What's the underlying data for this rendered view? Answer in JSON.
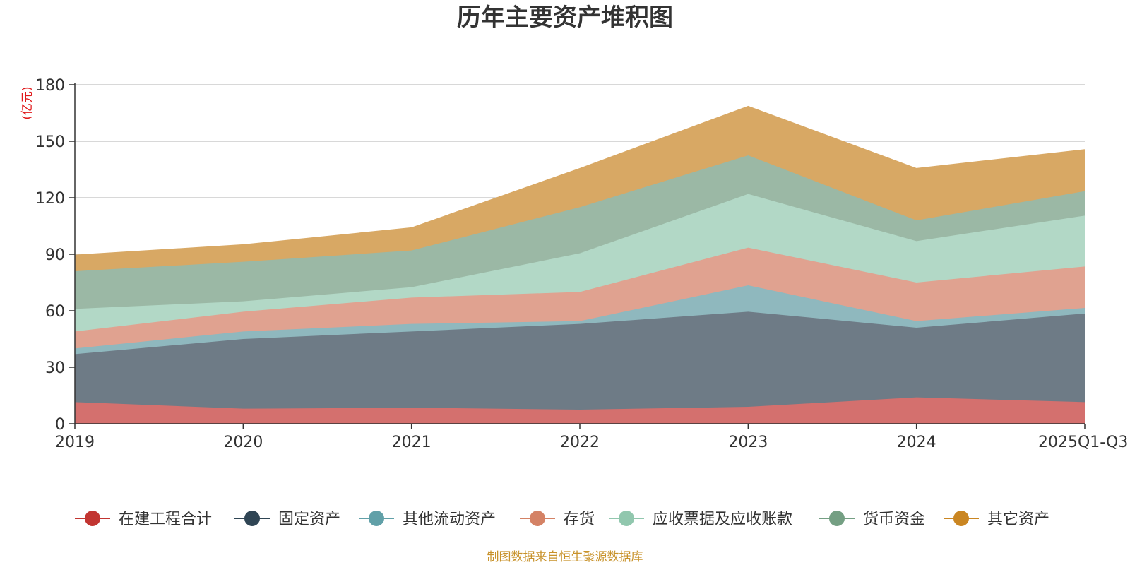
{
  "chart_data": {
    "type": "area",
    "stacked": true,
    "title": "历年主要资产堆积图",
    "unit": "(亿元)",
    "categories": [
      "2019",
      "2020",
      "2021",
      "2022",
      "2023",
      "2024",
      "2025Q1-Q3"
    ],
    "ylim": [
      0,
      180
    ],
    "yticks": [
      0,
      30,
      60,
      90,
      120,
      150,
      180
    ],
    "grid": true,
    "legend_position": "bottom",
    "series": [
      {
        "name": "在建工程合计",
        "color": "#c23531",
        "fill": "#d4706e",
        "values": [
          11.5,
          8,
          8.5,
          7.5,
          9,
          14,
          11.5
        ]
      },
      {
        "name": "固定资产",
        "color": "#2f4554",
        "fill": "#6e7b86",
        "values": [
          25.5,
          37,
          40.5,
          45.5,
          50.5,
          37,
          47
        ]
      },
      {
        "name": "其他流动资产",
        "color": "#61a0a8",
        "fill": "#8fb8be",
        "values": [
          3,
          4,
          4,
          1.5,
          14,
          3.5,
          3
        ]
      },
      {
        "name": "存货",
        "color": "#d48265",
        "fill": "#e0a290",
        "values": [
          9,
          10.5,
          14,
          15.5,
          20,
          20.5,
          22
        ]
      },
      {
        "name": "应收票据及应收账款",
        "color": "#91c7ae",
        "fill": "#b2d8c6",
        "values": [
          12,
          5.5,
          5.5,
          20.5,
          28.5,
          22,
          27
        ]
      },
      {
        "name": "货币资金",
        "color": "#749f83",
        "fill": "#9bb8a5",
        "values": [
          20,
          21,
          19.5,
          24.5,
          20.5,
          11,
          13
        ]
      },
      {
        "name": "其它资产",
        "color": "#ca8622",
        "fill": "#d8a864",
        "values": [
          8.5,
          9,
          12,
          20.5,
          26,
          27.5,
          22
        ]
      }
    ]
  },
  "source_note": "制图数据来自恒生聚源数据库"
}
